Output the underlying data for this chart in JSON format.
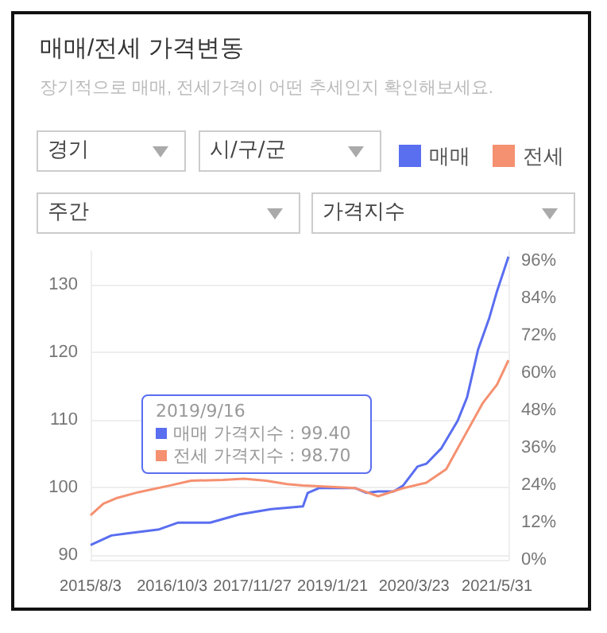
{
  "chart_data": {
    "type": "line",
    "title": "매매/전세 가격변동",
    "subtitle": "장기적으로 매매, 전세가격이 어떤 추세인지 확인해보세요.",
    "annotations": [
      "2019/9/16",
      "매매 가격지수 : 99.40",
      "전세 가격지수 : 98.70",
      "경기",
      "시/구/군",
      "주간",
      "가격지수"
    ],
    "series": [
      {
        "name": "매매",
        "color": "#5a6ef0",
        "x": [
          "2015-08-03",
          "2015-11-20",
          "2016-02-11",
          "2016-07-27",
          "2016-11-04",
          "2017-04-20",
          "2017-09-18",
          "2018-03-05",
          "2018-08-19",
          "2018-09-13",
          "2018-11-10",
          "2019-05-20",
          "2019-07-18",
          "2019-09-16",
          "2019-12-07",
          "2020-01-26",
          "2020-04-10",
          "2020-05-26",
          "2020-08-13",
          "2020-11-05",
          "2020-12-25",
          "2021-02-21",
          "2021-04-21",
          "2021-05-31",
          "2021-07-30"
        ],
        "values": [
          91.5,
          92.9,
          93.2,
          93.8,
          94.8,
          94.8,
          96.0,
          96.8,
          97.2,
          99.2,
          99.9,
          99.9,
          99.2,
          99.4,
          99.4,
          100.3,
          103.1,
          103.5,
          105.8,
          109.8,
          113.3,
          120.4,
          125.1,
          129.0,
          134.1
        ]
      },
      {
        "name": "전세",
        "color": "#f59070",
        "x": [
          "2015-08-03",
          "2015-10-09",
          "2015-12-15",
          "2016-04-10",
          "2016-09-24",
          "2017-01-10",
          "2017-06-26",
          "2017-10-13",
          "2018-02-07",
          "2018-05-27",
          "2018-08-19",
          "2019-05-20",
          "2019-09-16",
          "2020-01-26",
          "2020-05-26",
          "2020-09-07",
          "2020-11-30",
          "2021-03-18",
          "2021-05-31",
          "2021-07-30"
        ],
        "values": [
          95.9,
          97.6,
          98.4,
          99.3,
          100.3,
          101.0,
          101.1,
          101.3,
          101.0,
          100.5,
          100.3,
          99.9,
          98.7,
          99.9,
          100.7,
          102.7,
          107.0,
          112.5,
          115.2,
          118.8
        ]
      }
    ],
    "xlim": [
      "2015-08-03",
      "2021-07-30"
    ],
    "xticks": [
      {
        "value": "2015-08-03",
        "label": "2015/8/3"
      },
      {
        "value": "2016-10-03",
        "label": "2016/10/3"
      },
      {
        "value": "2017-11-27",
        "label": "2017/11/27"
      },
      {
        "value": "2019-01-21",
        "label": "2019/1/21"
      },
      {
        "value": "2020-03-23",
        "label": "2020/3/23"
      },
      {
        "value": "2021-05-31",
        "label": "2021/5/31"
      }
    ],
    "ylim": [
      89.3,
      134.9
    ],
    "yticks": [
      90,
      100,
      110,
      120,
      130
    ],
    "y2lim": [
      0,
      99
    ],
    "y2ticks": [
      {
        "value": 0,
        "label": "0%"
      },
      {
        "value": 12,
        "label": "12%"
      },
      {
        "value": 24,
        "label": "24%"
      },
      {
        "value": 36,
        "label": "36%"
      },
      {
        "value": 48,
        "label": "48%"
      },
      {
        "value": 60,
        "label": "60%"
      },
      {
        "value": 72,
        "label": "72%"
      },
      {
        "value": 84,
        "label": "84%"
      },
      {
        "value": 96,
        "label": "96%"
      }
    ],
    "grid": "y",
    "legend": "top",
    "marker": "none",
    "line_style": "solid"
  }
}
